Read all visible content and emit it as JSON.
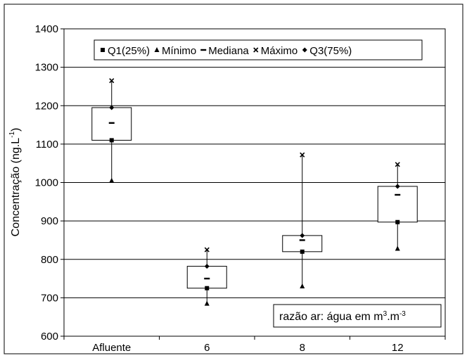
{
  "chart_data": {
    "type": "box",
    "categories": [
      "Afluente",
      "6",
      "8",
      "12"
    ],
    "series": [
      {
        "name": "Q1(25%)",
        "marker": "square",
        "values": [
          1110,
          725,
          820,
          897
        ]
      },
      {
        "name": "Mínimo",
        "marker": "triangle",
        "values": [
          1005,
          685,
          730,
          828
        ]
      },
      {
        "name": "Mediana",
        "marker": "dash",
        "values": [
          1155,
          750,
          850,
          968
        ]
      },
      {
        "name": "Máximo",
        "marker": "x",
        "values": [
          1265,
          825,
          1072,
          1047
        ]
      },
      {
        "name": "Q3(75%)",
        "marker": "diamond",
        "values": [
          1195,
          782,
          862,
          990
        ]
      }
    ],
    "ylabel_main": "Concentração (ng.L",
    "ylabel_sup": "-1",
    "ylabel_close": ")",
    "ylim": [
      600,
      1400
    ],
    "ytick_step": 100,
    "grid": true,
    "legend_position": "top",
    "annotation": {
      "text": "razão ar: água em m",
      "sup1": "3",
      "mid": ".m",
      "sup2": "-3"
    }
  }
}
